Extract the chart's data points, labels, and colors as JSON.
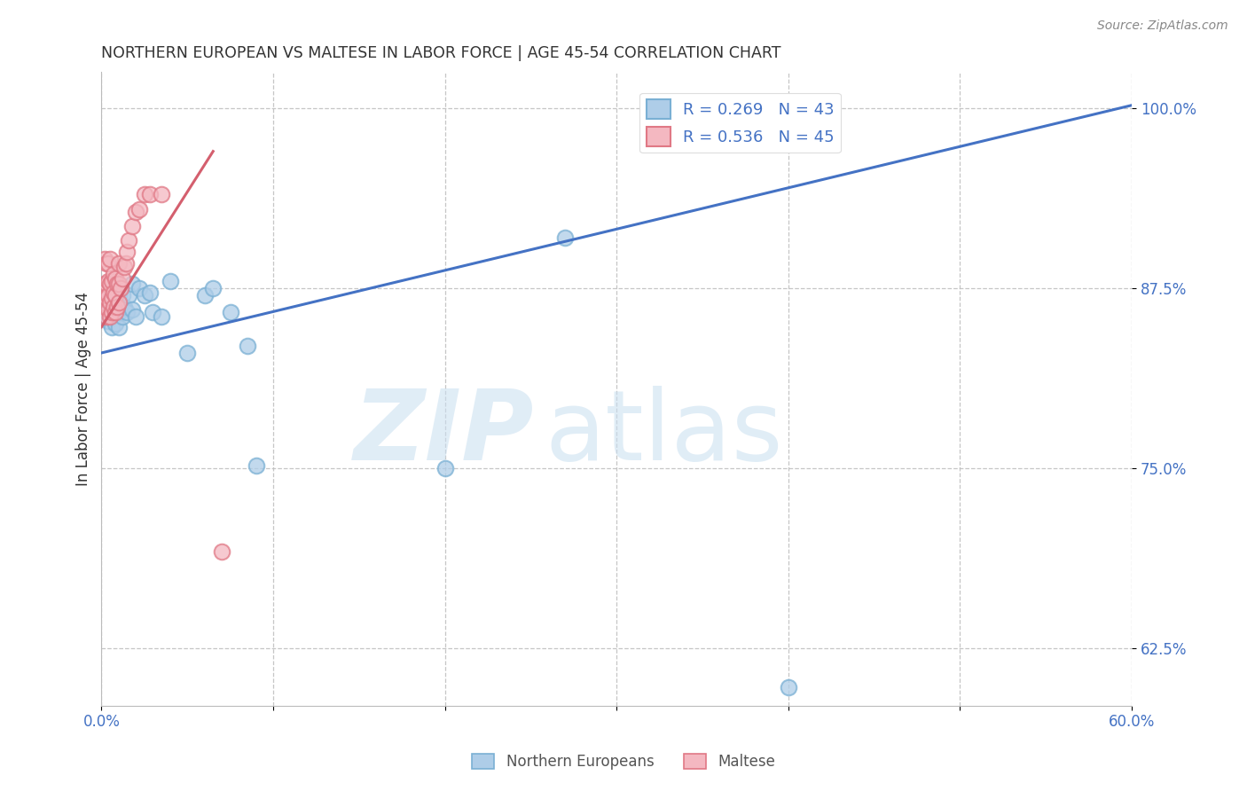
{
  "title": "NORTHERN EUROPEAN VS MALTESE IN LABOR FORCE | AGE 45-54 CORRELATION CHART",
  "source": "Source: ZipAtlas.com",
  "ylabel": "In Labor Force | Age 45-54",
  "xlim": [
    0.0,
    0.6
  ],
  "ylim": [
    0.585,
    1.025
  ],
  "xticks": [
    0.0,
    0.1,
    0.2,
    0.3,
    0.4,
    0.5,
    0.6
  ],
  "xtick_labels": [
    "0.0%",
    "",
    "",
    "",
    "",
    "",
    "60.0%"
  ],
  "ytick_positions": [
    0.625,
    0.75,
    0.875,
    1.0
  ],
  "ytick_labels": [
    "62.5%",
    "75.0%",
    "87.5%",
    "100.0%"
  ],
  "legend_R_blue": "R = 0.269",
  "legend_N_blue": "N = 43",
  "legend_R_pink": "R = 0.536",
  "legend_N_pink": "N = 45",
  "legend_label_blue": "Northern Europeans",
  "legend_label_pink": "Maltese",
  "blue_color": "#aecde8",
  "pink_color": "#f4b8c1",
  "blue_line_color": "#4472c4",
  "pink_line_color": "#d45f6e",
  "blue_edge_color": "#7ab0d4",
  "pink_edge_color": "#e07885",
  "blue_scatter_x": [
    0.002,
    0.003,
    0.004,
    0.004,
    0.005,
    0.005,
    0.005,
    0.006,
    0.006,
    0.006,
    0.007,
    0.007,
    0.008,
    0.008,
    0.008,
    0.009,
    0.01,
    0.01,
    0.01,
    0.011,
    0.012,
    0.012,
    0.013,
    0.015,
    0.016,
    0.018,
    0.018,
    0.02,
    0.022,
    0.025,
    0.028,
    0.03,
    0.035,
    0.04,
    0.05,
    0.06,
    0.065,
    0.075,
    0.085,
    0.09,
    0.2,
    0.27,
    0.4
  ],
  "blue_scatter_y": [
    0.855,
    0.862,
    0.852,
    0.865,
    0.858,
    0.868,
    0.875,
    0.848,
    0.856,
    0.872,
    0.86,
    0.87,
    0.85,
    0.858,
    0.868,
    0.86,
    0.848,
    0.858,
    0.87,
    0.862,
    0.855,
    0.87,
    0.862,
    0.858,
    0.87,
    0.878,
    0.86,
    0.855,
    0.875,
    0.87,
    0.872,
    0.858,
    0.855,
    0.88,
    0.83,
    0.87,
    0.875,
    0.858,
    0.835,
    0.752,
    0.75,
    0.91,
    0.598
  ],
  "pink_scatter_x": [
    0.001,
    0.001,
    0.002,
    0.002,
    0.002,
    0.002,
    0.003,
    0.003,
    0.003,
    0.003,
    0.004,
    0.004,
    0.004,
    0.004,
    0.005,
    0.005,
    0.005,
    0.005,
    0.006,
    0.006,
    0.006,
    0.007,
    0.007,
    0.007,
    0.008,
    0.008,
    0.008,
    0.009,
    0.009,
    0.01,
    0.01,
    0.01,
    0.011,
    0.012,
    0.013,
    0.014,
    0.015,
    0.016,
    0.018,
    0.02,
    0.022,
    0.025,
    0.028,
    0.035,
    0.07
  ],
  "pink_scatter_y": [
    0.87,
    0.875,
    0.862,
    0.87,
    0.878,
    0.895,
    0.855,
    0.868,
    0.878,
    0.892,
    0.86,
    0.87,
    0.88,
    0.892,
    0.855,
    0.865,
    0.878,
    0.895,
    0.858,
    0.868,
    0.88,
    0.862,
    0.872,
    0.885,
    0.858,
    0.87,
    0.882,
    0.862,
    0.878,
    0.865,
    0.878,
    0.892,
    0.875,
    0.882,
    0.89,
    0.892,
    0.9,
    0.908,
    0.918,
    0.928,
    0.93,
    0.94,
    0.94,
    0.94,
    0.692
  ],
  "blue_line_x": [
    0.0,
    0.6
  ],
  "blue_line_y": [
    0.83,
    1.002
  ],
  "pink_line_x": [
    0.0,
    0.065
  ],
  "pink_line_y": [
    0.848,
    0.97
  ]
}
